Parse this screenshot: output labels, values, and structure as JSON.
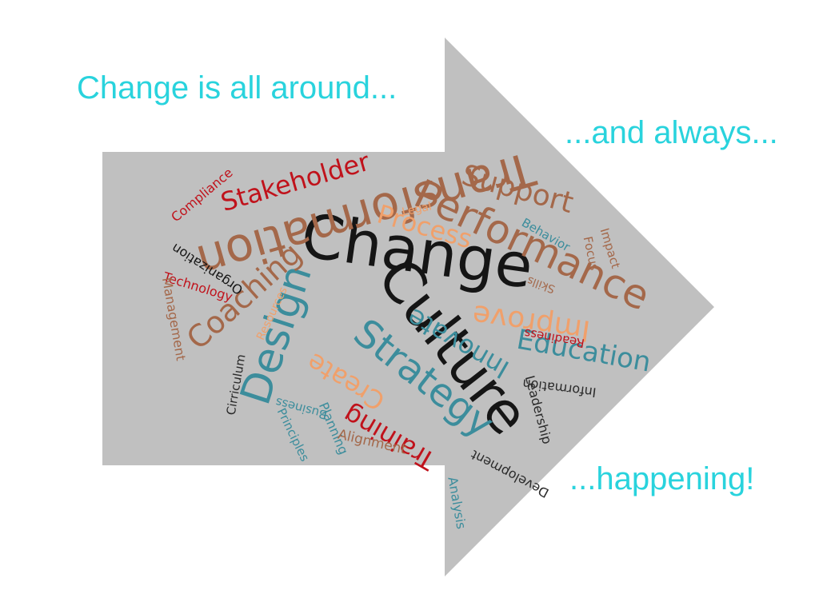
{
  "captions": {
    "top_left": "Change is all around...",
    "top_right": "...and always...",
    "bottom_right": "...happening!"
  },
  "colors": {
    "background": "#ffffff",
    "arrow": "#c0c0c0",
    "caption": "#29d3dd",
    "black": "#151515",
    "brown": "#a4684a",
    "red": "#c0121b",
    "teal": "#3c8d9c",
    "orange": "#f0a06b",
    "dark": "#2a2a2a"
  },
  "words": {
    "change": "Change",
    "culture": "Culture",
    "transformation": "Transformation",
    "performance": "Performance",
    "design": "Design",
    "strategy": "Strategy",
    "stakeholder": "Stakeholder",
    "support": "Support",
    "process": "Process",
    "coaching": "Coaching",
    "innovate": "Innovate",
    "improve": "Improve",
    "education": "Education",
    "create": "Create",
    "training": "Training",
    "compliance": "Compliance",
    "organization": "Organization",
    "technology": "Technology",
    "management": "Management",
    "resources": "Resources",
    "cirriculum": "Cirriculum",
    "business": "Business",
    "principles": "Principles",
    "planning": "Planning",
    "alignment": "Alignment",
    "analysis": "Analysis",
    "development": "Development",
    "leadership": "Leadership",
    "information": "Information",
    "readiness": "Readiness",
    "skills": "Skills",
    "legal": "Legal",
    "behavior": "Behavior",
    "focus": "Focus",
    "impact": "Impact"
  }
}
